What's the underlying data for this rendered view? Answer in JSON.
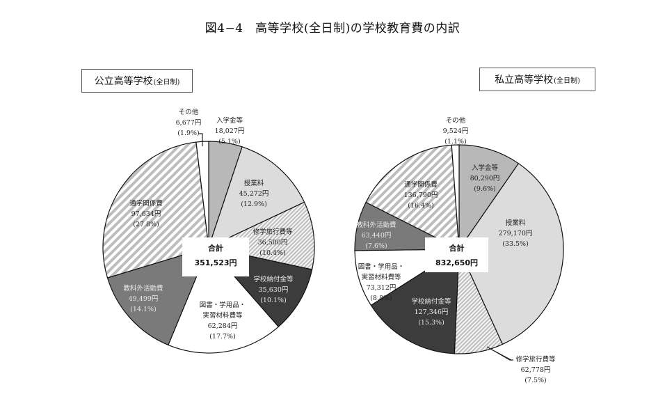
{
  "title": "図4−4　高等学校(全日制)の学校教育費の内訳",
  "colors": {
    "入学金等": "#b8b8b8",
    "授業料": "#dcdcdc",
    "修学旅行費等": "hatch-fine",
    "学校納付金等": "#3c3c3c",
    "図書・学用品・実習材料費等": "#ffffff",
    "教科外活動費": "#7a7a7a",
    "通学関係費": "hatch-wide",
    "その他": "#ffffff"
  },
  "public": {
    "panel_title": "公立高等学校",
    "panel_suffix": "(全日制)",
    "total_label": "合計",
    "total_value": "351,523円"
  },
  "private": {
    "panel_title": "私立高等学校",
    "panel_suffix": "(全日制)",
    "total_label": "合計",
    "total_value": "832,650円"
  },
  "chart_data": [
    {
      "type": "pie",
      "title": "公立高等学校(全日制)",
      "total": 351523,
      "unit": "円",
      "start": "12 o'clock, clockwise",
      "slices": [
        {
          "label": "入学金等",
          "value": 18027,
          "value_text": "18,027円",
          "pct": 5.1,
          "pct_text": "(5.1%)",
          "fill": "#b8b8b8"
        },
        {
          "label": "授業料",
          "value": 45272,
          "value_text": "45,272円",
          "pct": 12.9,
          "pct_text": "(12.9%)",
          "fill": "#dcdcdc"
        },
        {
          "label": "修学旅行費等",
          "value": 36500,
          "value_text": "36,500円",
          "pct": 10.4,
          "pct_text": "(10.4%)",
          "fill": "hatch-fine"
        },
        {
          "label": "学校納付金等",
          "value": 35630,
          "value_text": "35,630円",
          "pct": 10.1,
          "pct_text": "(10.1%)",
          "fill": "#3c3c3c"
        },
        {
          "label": "図書・学用品・実習材料費等",
          "label_lines": [
            "図書・学用品・",
            "実習材料費等"
          ],
          "value": 62284,
          "value_text": "62,284円",
          "pct": 17.7,
          "pct_text": "(17.7%)",
          "fill": "#ffffff"
        },
        {
          "label": "教科外活動費",
          "value": 49499,
          "value_text": "49,499円",
          "pct": 14.1,
          "pct_text": "(14.1%)",
          "fill": "#7a7a7a"
        },
        {
          "label": "通学関係費",
          "value": 97634,
          "value_text": "97,634円",
          "pct": 27.8,
          "pct_text": "(27.8%)",
          "fill": "hatch-wide"
        },
        {
          "label": "その他",
          "value": 6677,
          "value_text": "6,677円",
          "pct": 1.9,
          "pct_text": "(1.9%)",
          "fill": "#ffffff"
        }
      ]
    },
    {
      "type": "pie",
      "title": "私立高等学校(全日制)",
      "total": 832650,
      "unit": "円",
      "start": "12 o'clock, clockwise",
      "slices": [
        {
          "label": "入学金等",
          "value": 80290,
          "value_text": "80,290円",
          "pct": 9.6,
          "pct_text": "(9.6%)",
          "fill": "#b8b8b8"
        },
        {
          "label": "授業料",
          "value": 279170,
          "value_text": "279,170円",
          "pct": 33.5,
          "pct_text": "(33.5%)",
          "fill": "#dcdcdc"
        },
        {
          "label": "修学旅行費等",
          "value": 62778,
          "value_text": "62,778円",
          "pct": 7.5,
          "pct_text": "(7.5%)",
          "fill": "hatch-fine"
        },
        {
          "label": "学校納付金等",
          "value": 127346,
          "value_text": "127,346円",
          "pct": 15.3,
          "pct_text": "(15.3%)",
          "fill": "#3c3c3c"
        },
        {
          "label": "図書・学用品・実習材料費等",
          "label_lines": [
            "図書・学用品・",
            "実習材料費等"
          ],
          "value": 73312,
          "value_text": "73,312円",
          "pct": 8.8,
          "pct_text": "(8.8%)",
          "fill": "#ffffff"
        },
        {
          "label": "教科外活動費",
          "value": 63440,
          "value_text": "63,440円",
          "pct": 7.6,
          "pct_text": "(7.6%)",
          "fill": "#7a7a7a"
        },
        {
          "label": "通学関係費",
          "value": 136790,
          "value_text": "136,790円",
          "pct": 16.4,
          "pct_text": "(16.4%)",
          "fill": "hatch-wide"
        },
        {
          "label": "その他",
          "value": 9524,
          "value_text": "9,524円",
          "pct": 1.1,
          "pct_text": "(1.1%)",
          "fill": "#ffffff"
        }
      ]
    }
  ]
}
